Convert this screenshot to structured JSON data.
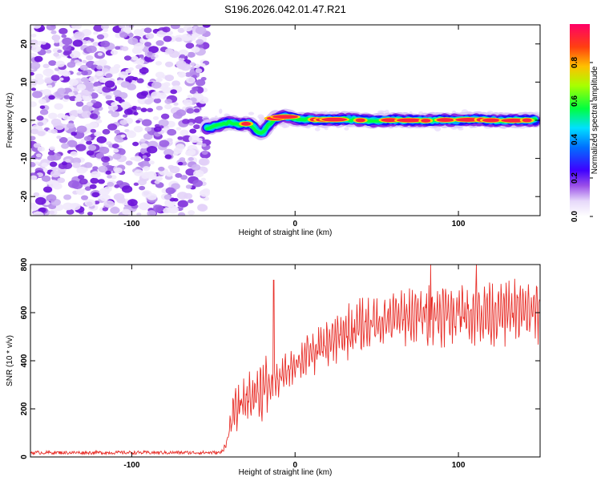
{
  "chart_data": [
    {
      "type": "heatmap",
      "title": "S196.2026.042.01.47.R21",
      "xlabel": "Height of straight line (km)",
      "ylabel": "Frequency (Hz)",
      "xlim": [
        -162,
        150
      ],
      "ylim": [
        -25,
        25
      ],
      "x_ticks": [
        -100,
        0,
        100
      ],
      "y_ticks": [
        -20,
        -10,
        0,
        10,
        20
      ],
      "noise_region_x": [
        -162,
        -54
      ],
      "ridge": {
        "x": [
          -54,
          -48,
          -40,
          -34,
          -28,
          -24,
          -20,
          -16,
          -12,
          -8,
          -4,
          0,
          10,
          20,
          30,
          40,
          50,
          60,
          70,
          80,
          90,
          100,
          110,
          120,
          130,
          140,
          148
        ],
        "freq": [
          -2,
          -1.5,
          -0.5,
          -1.2,
          -0.8,
          -2.5,
          -3.5,
          -1,
          0.5,
          1,
          0.8,
          0.4,
          0.2,
          0.1,
          0.3,
          0.0,
          -0.2,
          0.1,
          0.0,
          -0.1,
          0.1,
          0.0,
          0.2,
          0.0,
          -0.1,
          0.0,
          0.0
        ]
      },
      "colorbar": {
        "label": "Normalized spectral amplitude",
        "range": [
          0,
          1
        ],
        "ticks": [
          "0.0",
          "0.2",
          "0.4",
          "0.6",
          "0.8"
        ],
        "colors": [
          "#ffffff",
          "#d9c7f5",
          "#8a2be2",
          "#3f00ff",
          "#0060ff",
          "#00d8ff",
          "#00ff60",
          "#b8ff00",
          "#ffc800",
          "#ff4010",
          "#ff0066"
        ]
      }
    },
    {
      "type": "line",
      "xlabel": "Height of straight line (km)",
      "ylabel": "SNR (10 * v/v)",
      "xlim": [
        -162,
        150
      ],
      "ylim": [
        0,
        800
      ],
      "x_ticks": [
        -100,
        0,
        100
      ],
      "y_ticks": [
        0,
        200,
        400,
        600,
        800
      ],
      "series": [
        {
          "name": "SNR",
          "color": "#e8302a",
          "trend_x": [
            -162,
            -45,
            -42,
            -38,
            -30,
            -20,
            -10,
            0,
            10,
            20,
            30,
            40,
            50,
            60,
            70,
            80,
            100,
            120,
            150
          ],
          "trend_y": [
            18,
            18,
            60,
            180,
            240,
            280,
            320,
            390,
            430,
            470,
            510,
            540,
            560,
            575,
            585,
            590,
            600,
            600,
            605
          ],
          "spikes": [
            {
              "x": -13,
              "y": 735
            },
            {
              "x": 83,
              "y": 800
            },
            {
              "x": 111,
              "y": 800
            }
          ]
        }
      ]
    }
  ]
}
